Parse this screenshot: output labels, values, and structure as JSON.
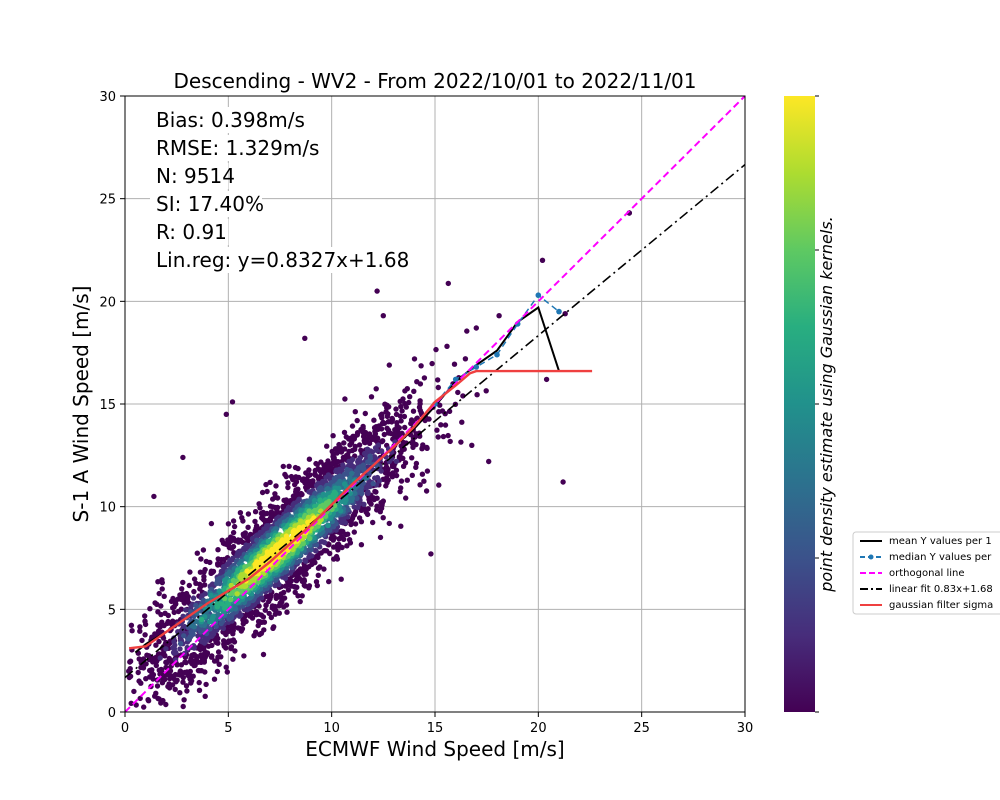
{
  "chart_data": {
    "type": "scatter",
    "title": "Descending - WV2 - From 2022/10/01 to 2022/11/01",
    "xlabel": "ECMWF Wind Speed [m/s]",
    "ylabel": "S-1 A Wind Speed [m/s]",
    "xlim": [
      0,
      30
    ],
    "ylim": [
      0,
      30
    ],
    "xticks": [
      "0",
      "5",
      "10",
      "15",
      "20",
      "25",
      "30"
    ],
    "yticks": [
      "0",
      "5",
      "10",
      "15",
      "20",
      "25",
      "30"
    ],
    "grid": true,
    "colormap": "viridis",
    "colorbar_label": "point density estimate using Gaussian kernels.",
    "stats": [
      "Bias: 0.398m/s",
      "RMSE: 1.329m/s",
      "N: 9514",
      "SI: 17.40%",
      "R: 0.91",
      "Lin.reg: y=0.8327x+1.68"
    ],
    "legend_position": "right (outside plot, clipped)",
    "legend": [
      "mean Y values per 1",
      "median Y values per",
      "orthogonal line",
      "linear fit 0.83x+1.68",
      "gaussian filter sigma"
    ],
    "series": [
      {
        "kind": "mean",
        "color": "#000000",
        "x": [
          0.5,
          1,
          2,
          3,
          4,
          5,
          6,
          7,
          8,
          9,
          10,
          11,
          12,
          13,
          14,
          15,
          16,
          17,
          18,
          19,
          20,
          21
        ],
        "y": [
          2.9,
          3.3,
          3.9,
          4.6,
          5.3,
          5.9,
          6.5,
          7.3,
          8.2,
          9.1,
          10.1,
          11.1,
          12.0,
          12.9,
          13.8,
          14.9,
          16.1,
          16.9,
          17.6,
          19.0,
          19.7,
          16.6
        ]
      },
      {
        "kind": "median",
        "color": "#1f77b4",
        "x": [
          15,
          16,
          17,
          18,
          19,
          20,
          21
        ],
        "y": [
          15.0,
          16.2,
          16.8,
          17.4,
          18.9,
          20.3,
          19.5
        ]
      },
      {
        "kind": "orthogonal",
        "color": "#ff00ff",
        "x": [
          0,
          30
        ],
        "y": [
          0,
          30
        ]
      },
      {
        "kind": "linear_fit",
        "color": "#000000",
        "x": [
          0,
          30
        ],
        "y": [
          1.68,
          26.66
        ]
      },
      {
        "kind": "gaussian",
        "color": "#ef4040",
        "x": [
          0.2,
          1,
          2,
          3,
          4,
          5,
          6,
          7,
          8,
          9,
          10,
          11,
          12,
          13,
          14,
          15,
          16,
          16.7,
          17,
          18,
          19,
          20,
          21,
          22,
          22.6
        ],
        "y": [
          3.1,
          3.2,
          3.9,
          4.6,
          5.3,
          5.9,
          6.5,
          7.3,
          8.2,
          9.1,
          10.1,
          11.1,
          12.0,
          12.9,
          13.9,
          15.1,
          15.9,
          16.5,
          16.6,
          16.6,
          16.6,
          16.6,
          16.6,
          16.6,
          16.6
        ]
      }
    ],
    "outlier_points": {
      "x": [
        20.2,
        21.2,
        24.4,
        24.4,
        12.2,
        8.7,
        5.2,
        4.9,
        14.8,
        18.1,
        12.5,
        2.8,
        6.7,
        1.4,
        20.4,
        21.3,
        17.6,
        17.0
      ],
      "y": [
        22.0,
        11.2,
        24.3,
        24.3,
        20.5,
        18.2,
        15.1,
        14.5,
        7.7,
        19.3,
        19.3,
        12.4,
        2.8,
        10.5,
        16.2,
        19.4,
        12.2,
        18.7
      ]
    }
  },
  "colors": {
    "mean": "#000000",
    "median": "#1f77b4",
    "orthogonal": "#ff00ff",
    "fit": "#000000",
    "gaussian": "#ef4040",
    "grid": "#b0b0b0"
  }
}
